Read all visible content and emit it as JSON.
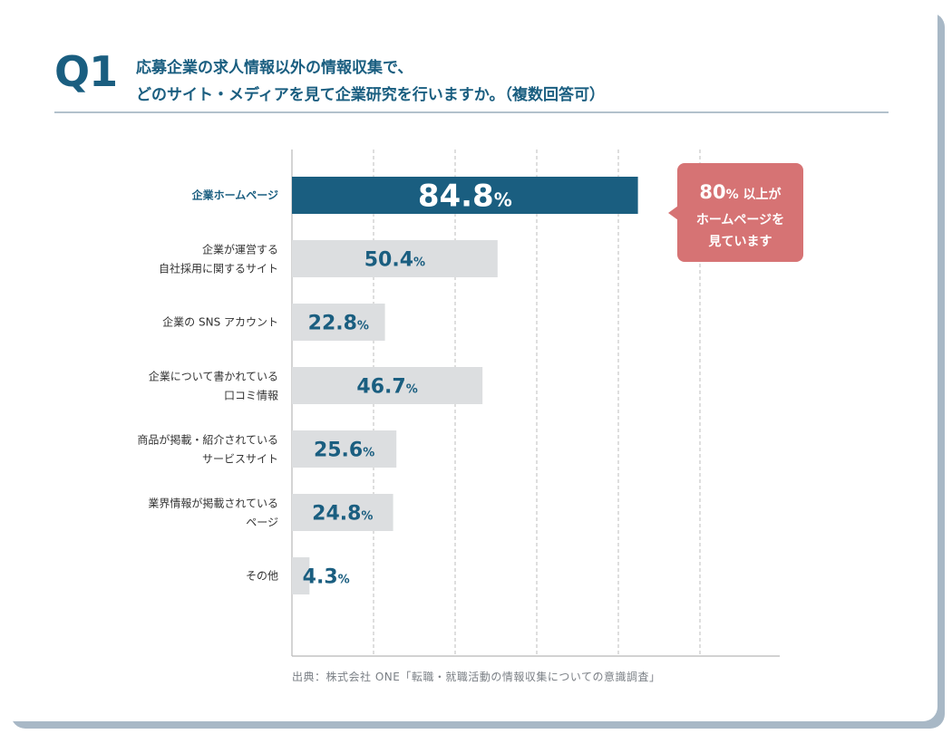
{
  "header": {
    "question_number": "Q1",
    "question_line1": "応募企業の求人情報以外の情報収集で、",
    "question_line2": "どのサイト・メディアを見て企業研究を行いますか。（複数回答可）"
  },
  "callout": {
    "value": "80",
    "unit": "%",
    "line1_suffix": " 以上が",
    "line2": "ホームページを",
    "line3": "見ています"
  },
  "source": "出典：株式会社 ONE「転職・就職活動の情報収集についての意識調査」",
  "colors": {
    "accent": "#1a5e80",
    "highlight_bar": "#1a5e80",
    "other_bar": "#dcdee0",
    "callout": "#d67374",
    "label": "#333333",
    "grid": "#c9c9c9"
  },
  "chart_data": {
    "type": "bar",
    "orientation": "horizontal",
    "unit": "%",
    "xlim": [
      0,
      100
    ],
    "grid": true,
    "categories": [
      [
        "企業ホームページ"
      ],
      [
        "企業が運営する",
        "自社採用に関するサイト"
      ],
      [
        "企業の SNS アカウント"
      ],
      [
        "企業について書かれている",
        "口コミ情報"
      ],
      [
        "商品が掲載・紹介されている",
        "サービスサイト"
      ],
      [
        "業界情報が掲載されている",
        "ページ"
      ],
      [
        "その他"
      ]
    ],
    "values": [
      84.8,
      50.4,
      22.8,
      46.7,
      25.6,
      24.8,
      4.3
    ],
    "highlight_index": 0
  }
}
